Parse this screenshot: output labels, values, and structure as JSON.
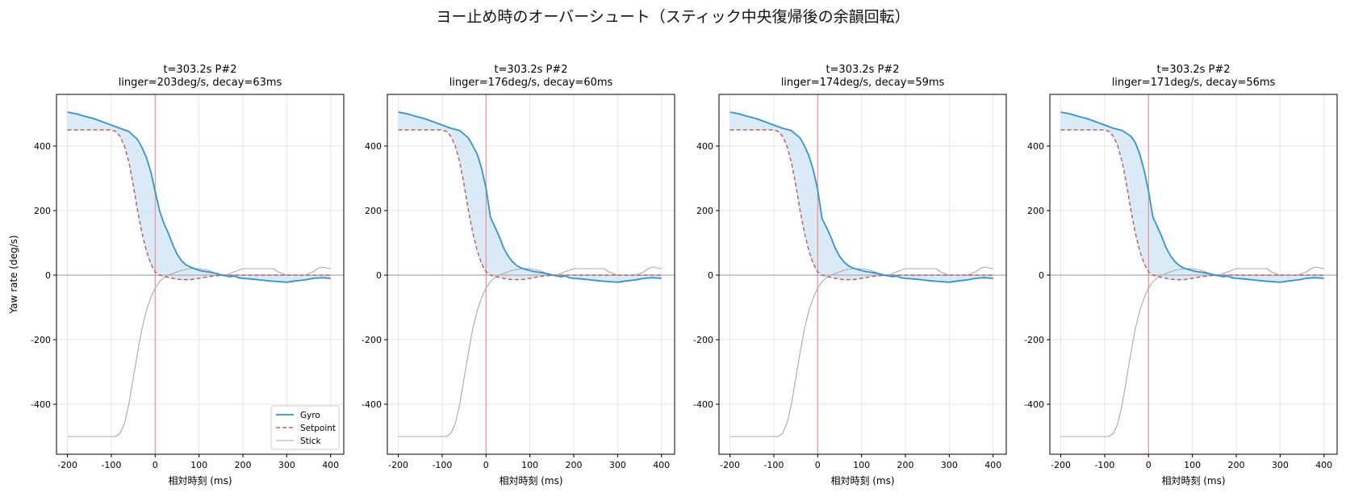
{
  "figure": {
    "suptitle": "ヨー止め時のオーバーシュート（スティック中央復帰後の余韻回転）"
  },
  "chart_data": [
    {
      "type": "line",
      "title": "t=303.2s P#2",
      "subtitle": "linger=203deg/s, decay=63ms",
      "xlabel": "相対時刻 (ms)",
      "ylabel": "Yaw rate (deg/s)",
      "xlim": [
        -225,
        430
      ],
      "ylim": [
        -555,
        560
      ],
      "xticks": [
        -200,
        -100,
        0,
        100,
        200,
        300,
        400
      ],
      "yticks": [
        -400,
        -200,
        0,
        200,
        400
      ],
      "grid": true,
      "legend": "lower-right",
      "series": [
        {
          "name": "Gyro",
          "color": "#2e95d8",
          "style": "solid",
          "x": [
            -200,
            -180,
            -160,
            -140,
            -120,
            -100,
            -80,
            -60,
            -40,
            -30,
            -20,
            -10,
            0,
            10,
            20,
            30,
            40,
            50,
            60,
            70,
            80,
            90,
            100,
            110,
            120,
            130,
            140,
            150,
            160,
            170,
            180,
            190,
            200,
            220,
            240,
            260,
            280,
            300,
            320,
            340,
            360,
            380,
            400
          ],
          "y": [
            505,
            500,
            492,
            485,
            475,
            465,
            455,
            445,
            420,
            395,
            365,
            320,
            260,
            200,
            160,
            130,
            95,
            65,
            45,
            32,
            25,
            20,
            15,
            12,
            10,
            8,
            5,
            0,
            -2,
            -5,
            -3,
            -8,
            -10,
            -12,
            -15,
            -18,
            -20,
            -22,
            -18,
            -15,
            -10,
            -8,
            -10
          ]
        },
        {
          "name": "Setpoint",
          "color": "#c4625f",
          "style": "dashed",
          "x": [
            -200,
            -100,
            -90,
            -80,
            -70,
            -60,
            -50,
            -40,
            -30,
            -20,
            -10,
            0,
            10,
            20,
            40,
            60,
            80,
            100,
            120,
            140,
            160,
            180,
            200,
            250,
            300,
            350,
            400
          ],
          "y": [
            450,
            450,
            445,
            430,
            400,
            350,
            280,
            200,
            130,
            75,
            35,
            10,
            0,
            -4,
            -10,
            -14,
            -14,
            -10,
            -5,
            -2,
            0,
            0,
            0,
            0,
            0,
            0,
            0
          ]
        },
        {
          "name": "Stick",
          "color": "#aaaaaa",
          "style": "solid",
          "x": [
            -200,
            -90,
            -80,
            -70,
            -60,
            -50,
            -40,
            -30,
            -20,
            -10,
            0,
            10,
            20,
            30,
            40,
            50,
            60,
            80,
            100,
            120,
            140,
            160,
            180,
            200,
            240,
            270,
            280,
            300,
            320,
            340,
            360,
            370,
            380,
            400
          ],
          "y": [
            -500,
            -500,
            -490,
            -460,
            -400,
            -320,
            -240,
            -165,
            -110,
            -70,
            -40,
            -20,
            -8,
            0,
            5,
            10,
            15,
            20,
            20,
            15,
            5,
            0,
            10,
            20,
            20,
            20,
            10,
            0,
            0,
            0,
            10,
            20,
            25,
            20
          ]
        }
      ]
    },
    {
      "type": "line",
      "title": "t=303.2s P#2",
      "subtitle": "linger=176deg/s, decay=60ms",
      "xlabel": "相対時刻 (ms)",
      "ylabel": "",
      "xlim": [
        -225,
        430
      ],
      "ylim": [
        -555,
        560
      ],
      "xticks": [
        -200,
        -100,
        0,
        100,
        200,
        300,
        400
      ],
      "yticks": [
        -400,
        -200,
        0,
        200,
        400
      ],
      "grid": true,
      "legend": "",
      "series": [
        {
          "name": "Gyro",
          "color": "#2e95d8",
          "style": "solid",
          "x": [
            -200,
            -180,
            -160,
            -140,
            -120,
            -100,
            -80,
            -60,
            -40,
            -30,
            -20,
            -10,
            0,
            10,
            20,
            30,
            40,
            50,
            60,
            70,
            80,
            90,
            100,
            110,
            120,
            130,
            140,
            150,
            160,
            170,
            180,
            190,
            200,
            220,
            240,
            260,
            280,
            300,
            320,
            340,
            360,
            380,
            400
          ],
          "y": [
            505,
            500,
            492,
            485,
            475,
            465,
            455,
            448,
            425,
            400,
            375,
            330,
            270,
            180,
            150,
            120,
            85,
            60,
            42,
            30,
            22,
            18,
            14,
            11,
            9,
            7,
            4,
            0,
            -2,
            -5,
            -3,
            -8,
            -10,
            -12,
            -15,
            -18,
            -20,
            -22,
            -18,
            -15,
            -10,
            -8,
            -10
          ]
        },
        {
          "name": "Setpoint",
          "color": "#c4625f",
          "style": "dashed",
          "x": [
            -200,
            -100,
            -90,
            -80,
            -70,
            -60,
            -50,
            -40,
            -30,
            -20,
            -10,
            0,
            10,
            20,
            40,
            60,
            80,
            100,
            120,
            140,
            160,
            180,
            200,
            250,
            300,
            350,
            400
          ],
          "y": [
            450,
            450,
            445,
            430,
            400,
            350,
            280,
            200,
            130,
            75,
            35,
            10,
            0,
            -4,
            -10,
            -14,
            -14,
            -10,
            -5,
            -2,
            0,
            0,
            0,
            0,
            0,
            0,
            0
          ]
        },
        {
          "name": "Stick",
          "color": "#aaaaaa",
          "style": "solid",
          "x": [
            -200,
            -90,
            -80,
            -70,
            -60,
            -50,
            -40,
            -30,
            -20,
            -10,
            0,
            10,
            20,
            30,
            40,
            50,
            60,
            80,
            100,
            120,
            140,
            160,
            180,
            200,
            240,
            270,
            280,
            300,
            320,
            340,
            360,
            370,
            380,
            400
          ],
          "y": [
            -500,
            -500,
            -490,
            -460,
            -400,
            -320,
            -240,
            -165,
            -110,
            -70,
            -40,
            -20,
            -8,
            0,
            5,
            10,
            15,
            20,
            20,
            15,
            5,
            0,
            10,
            20,
            20,
            20,
            10,
            0,
            0,
            0,
            10,
            20,
            25,
            20
          ]
        }
      ]
    },
    {
      "type": "line",
      "title": "t=303.2s P#2",
      "subtitle": "linger=174deg/s, decay=59ms",
      "xlabel": "相対時刻 (ms)",
      "ylabel": "",
      "xlim": [
        -225,
        430
      ],
      "ylim": [
        -555,
        560
      ],
      "xticks": [
        -200,
        -100,
        0,
        100,
        200,
        300,
        400
      ],
      "yticks": [
        -400,
        -200,
        0,
        200,
        400
      ],
      "grid": true,
      "legend": "",
      "series": [
        {
          "name": "Gyro",
          "color": "#2e95d8",
          "style": "solid",
          "x": [
            -200,
            -180,
            -160,
            -140,
            -120,
            -100,
            -80,
            -60,
            -40,
            -30,
            -20,
            -10,
            0,
            10,
            20,
            30,
            40,
            50,
            60,
            70,
            80,
            90,
            100,
            110,
            120,
            130,
            140,
            150,
            160,
            170,
            180,
            190,
            200,
            220,
            240,
            260,
            280,
            300,
            320,
            340,
            360,
            380,
            400
          ],
          "y": [
            505,
            500,
            492,
            485,
            475,
            465,
            455,
            448,
            425,
            400,
            370,
            325,
            265,
            175,
            148,
            118,
            84,
            58,
            41,
            29,
            22,
            18,
            14,
            11,
            9,
            7,
            4,
            0,
            -2,
            -5,
            -3,
            -8,
            -10,
            -12,
            -15,
            -18,
            -20,
            -22,
            -18,
            -15,
            -10,
            -8,
            -10
          ]
        },
        {
          "name": "Setpoint",
          "color": "#c4625f",
          "style": "dashed",
          "x": [
            -200,
            -100,
            -90,
            -80,
            -70,
            -60,
            -50,
            -40,
            -30,
            -20,
            -10,
            0,
            10,
            20,
            40,
            60,
            80,
            100,
            120,
            140,
            160,
            180,
            200,
            250,
            300,
            350,
            400
          ],
          "y": [
            450,
            450,
            445,
            430,
            400,
            350,
            280,
            200,
            130,
            75,
            35,
            10,
            0,
            -4,
            -10,
            -14,
            -14,
            -10,
            -5,
            -2,
            0,
            0,
            0,
            0,
            0,
            0,
            0
          ]
        },
        {
          "name": "Stick",
          "color": "#aaaaaa",
          "style": "solid",
          "x": [
            -200,
            -90,
            -80,
            -70,
            -60,
            -50,
            -40,
            -30,
            -20,
            -10,
            0,
            10,
            20,
            30,
            40,
            50,
            60,
            80,
            100,
            120,
            140,
            160,
            180,
            200,
            240,
            270,
            280,
            300,
            320,
            340,
            360,
            370,
            380,
            400
          ],
          "y": [
            -500,
            -500,
            -490,
            -460,
            -400,
            -320,
            -240,
            -165,
            -110,
            -70,
            -40,
            -20,
            -8,
            0,
            5,
            10,
            15,
            20,
            20,
            15,
            5,
            0,
            10,
            20,
            20,
            20,
            10,
            0,
            0,
            0,
            10,
            20,
            25,
            20
          ]
        }
      ]
    },
    {
      "type": "line",
      "title": "t=303.2s P#2",
      "subtitle": "linger=171deg/s, decay=56ms",
      "xlabel": "相対時刻 (ms)",
      "ylabel": "",
      "xlim": [
        -225,
        430
      ],
      "ylim": [
        -555,
        560
      ],
      "xticks": [
        -200,
        -100,
        0,
        100,
        200,
        300,
        400
      ],
      "yticks": [
        -400,
        -200,
        0,
        200,
        400
      ],
      "grid": true,
      "legend": "",
      "series": [
        {
          "name": "Gyro",
          "color": "#2e95d8",
          "style": "solid",
          "x": [
            -200,
            -180,
            -160,
            -140,
            -120,
            -100,
            -80,
            -60,
            -40,
            -30,
            -20,
            -10,
            0,
            10,
            20,
            30,
            40,
            50,
            60,
            70,
            80,
            90,
            100,
            110,
            120,
            130,
            140,
            150,
            160,
            170,
            180,
            190,
            200,
            220,
            240,
            260,
            280,
            300,
            320,
            340,
            360,
            380,
            400
          ],
          "y": [
            505,
            500,
            492,
            485,
            475,
            465,
            455,
            448,
            430,
            410,
            375,
            325,
            260,
            180,
            150,
            120,
            85,
            60,
            42,
            30,
            22,
            18,
            14,
            11,
            9,
            7,
            4,
            0,
            -2,
            -5,
            -3,
            -8,
            -10,
            -12,
            -15,
            -18,
            -20,
            -22,
            -18,
            -15,
            -10,
            -8,
            -10
          ]
        },
        {
          "name": "Setpoint",
          "color": "#c4625f",
          "style": "dashed",
          "x": [
            -200,
            -100,
            -90,
            -80,
            -70,
            -60,
            -50,
            -40,
            -30,
            -20,
            -10,
            0,
            10,
            20,
            40,
            60,
            80,
            100,
            120,
            140,
            160,
            180,
            200,
            250,
            300,
            350,
            400
          ],
          "y": [
            450,
            450,
            445,
            430,
            400,
            350,
            280,
            200,
            130,
            75,
            35,
            10,
            0,
            -4,
            -10,
            -14,
            -14,
            -10,
            -5,
            -2,
            0,
            0,
            0,
            0,
            0,
            0,
            0
          ]
        },
        {
          "name": "Stick",
          "color": "#aaaaaa",
          "style": "solid",
          "x": [
            -200,
            -90,
            -80,
            -70,
            -60,
            -50,
            -40,
            -30,
            -20,
            -10,
            0,
            10,
            20,
            30,
            40,
            50,
            60,
            80,
            100,
            120,
            140,
            160,
            180,
            200,
            240,
            270,
            280,
            300,
            320,
            340,
            360,
            370,
            380,
            400
          ],
          "y": [
            -500,
            -500,
            -490,
            -460,
            -400,
            -320,
            -240,
            -165,
            -110,
            -70,
            -40,
            -20,
            -8,
            0,
            5,
            10,
            15,
            20,
            20,
            15,
            5,
            0,
            10,
            20,
            20,
            20,
            10,
            0,
            0,
            0,
            10,
            20,
            25,
            20
          ]
        }
      ]
    }
  ],
  "style": {
    "fill_color": "#cfe3f4",
    "event_line_color": "#f08080",
    "zero_line_color": "#aaaaaa",
    "grid_color": "#e6e6e6"
  }
}
